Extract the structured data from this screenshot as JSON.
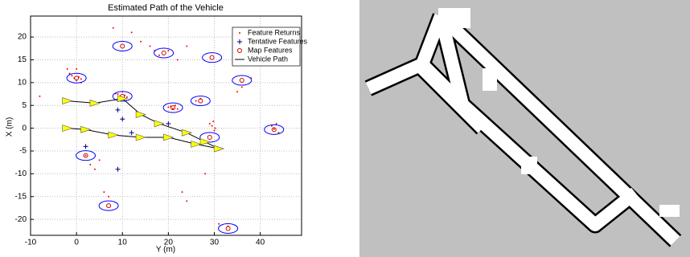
{
  "chart_data": {
    "type": "scatter",
    "title": "Estimated Path of the Vehicle",
    "x_label": "Y (m)",
    "y_label": "X (m)",
    "xlim": [
      -10,
      49
    ],
    "ylim": [
      -23.5,
      24.6
    ],
    "xticks": [
      -10,
      0,
      10,
      20,
      30,
      40
    ],
    "yticks": [
      -20,
      -15,
      -10,
      -5,
      0,
      5,
      10,
      15,
      20
    ],
    "grid": true,
    "legend": "upper right",
    "series": [
      {
        "name": "Feature Returns",
        "type": "scatter",
        "marker": "dot",
        "color": "#ff0000",
        "x": [
          -1,
          -0.5,
          0,
          0.5,
          1,
          -1.5,
          0,
          1,
          9,
          9.5,
          10,
          10.5,
          11,
          8.5,
          20.5,
          21,
          21.5,
          22,
          20,
          26,
          27,
          29,
          29.5,
          30,
          29.8,
          30.2,
          42.5,
          43,
          43.5,
          44,
          8,
          12,
          14,
          16,
          17,
          18,
          20,
          22,
          24,
          6,
          7,
          3,
          4,
          2,
          5,
          23,
          24,
          28,
          35,
          36,
          38,
          -2,
          -8,
          31,
          33
        ],
        "y": [
          11.5,
          11,
          10.5,
          11.2,
          10.8,
          12,
          13,
          10,
          7.5,
          7,
          8,
          7.2,
          6.8,
          7.6,
          4.8,
          4.3,
          5,
          4.2,
          4.6,
          6,
          6.5,
          1,
          0.5,
          -0.5,
          1.5,
          0,
          0.5,
          -0.2,
          1,
          -1,
          22,
          21,
          19,
          18,
          17,
          16,
          17,
          15,
          18,
          -14,
          -15,
          -8,
          -9,
          -6,
          -7,
          -14,
          -16,
          -10,
          8,
          9,
          11,
          13,
          7,
          -21,
          -21.5
        ]
      },
      {
        "name": "Tentative Features",
        "type": "scatter",
        "marker": "plus",
        "color": "#000080",
        "x": [
          9,
          10,
          12,
          2,
          9,
          20
        ],
        "y": [
          4,
          2,
          -1,
          -4,
          -9,
          1
        ]
      },
      {
        "name": "Map Features",
        "type": "scatter",
        "marker": "circle",
        "color": "#cc0000",
        "ellipse_color": "#0000ff",
        "x": [
          10,
          19,
          29.5,
          36,
          0,
          10,
          21,
          27,
          43,
          29,
          2,
          7,
          33
        ],
        "y": [
          18,
          16.5,
          15.5,
          10.5,
          11,
          7,
          4.5,
          6,
          -0.3,
          -2,
          -6,
          -17,
          -22
        ]
      },
      {
        "name": "Vehicle Path",
        "type": "line",
        "marker": "triangle",
        "color": "#000000",
        "marker_color": "#ffff00",
        "x": [
          -2,
          4,
          10,
          14,
          18,
          24,
          28,
          31,
          26,
          20,
          14,
          8,
          2,
          -2
        ],
        "y": [
          6,
          5.5,
          6.5,
          3,
          1,
          -1,
          -3,
          -4.5,
          -3.5,
          -2,
          -2,
          -1.5,
          -0.3,
          0
        ]
      }
    ]
  }
}
